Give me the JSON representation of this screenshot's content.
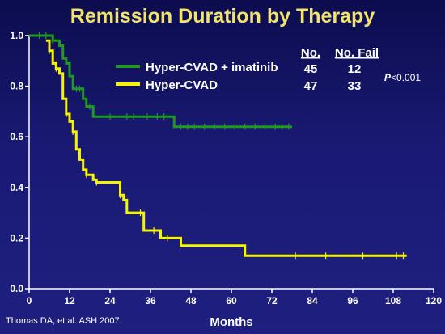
{
  "slide": {
    "title": "Remission Duration by Therapy",
    "citation": "Thomas DA, et al. ASH 2007.",
    "pvalue": {
      "prefix": "P",
      "rest": "<0.001"
    },
    "table": {
      "headers": [
        "No.",
        "No. Fail"
      ],
      "rows": [
        {
          "n": "45",
          "fail": "12"
        },
        {
          "n": "47",
          "fail": "33"
        }
      ]
    }
  },
  "chart_data": {
    "type": "line",
    "title": "Remission Duration by Therapy",
    "xlabel": "Months",
    "ylabel": "",
    "xlim": [
      0,
      120
    ],
    "ylim": [
      0,
      1.0
    ],
    "xticks": [
      "0",
      "12",
      "24",
      "36",
      "48",
      "60",
      "72",
      "84",
      "96",
      "108",
      "120"
    ],
    "yticks": [
      "0.0",
      "0.2",
      "0.4",
      "0.6",
      "0.8",
      "1.0"
    ],
    "grid": false,
    "legend_position": "top-center",
    "series": [
      {
        "name": "Hyper-CVAD + imatinib",
        "color": "#1f9a1f",
        "step_points": [
          [
            0,
            1.0
          ],
          [
            7,
            1.0
          ],
          [
            7,
            0.98
          ],
          [
            9,
            0.98
          ],
          [
            9,
            0.96
          ],
          [
            10,
            0.96
          ],
          [
            10,
            0.91
          ],
          [
            11,
            0.91
          ],
          [
            11,
            0.89
          ],
          [
            12,
            0.89
          ],
          [
            12,
            0.84
          ],
          [
            13,
            0.84
          ],
          [
            13,
            0.79
          ],
          [
            16,
            0.79
          ],
          [
            16,
            0.75
          ],
          [
            17,
            0.75
          ],
          [
            17,
            0.72
          ],
          [
            19,
            0.72
          ],
          [
            19,
            0.68
          ],
          [
            43,
            0.68
          ],
          [
            43,
            0.64
          ],
          [
            78,
            0.64
          ]
        ],
        "censor_x": [
          3,
          5,
          7,
          14,
          15,
          18,
          24,
          29,
          31,
          35,
          38,
          40,
          45,
          47,
          49,
          52,
          55,
          58,
          61,
          64,
          67,
          70,
          73,
          75,
          77
        ]
      },
      {
        "name": "Hyper-CVAD",
        "color": "#f5f500",
        "step_points": [
          [
            5,
            0.98
          ],
          [
            6,
            0.98
          ],
          [
            6,
            0.94
          ],
          [
            7,
            0.94
          ],
          [
            7,
            0.89
          ],
          [
            8,
            0.89
          ],
          [
            8,
            0.87
          ],
          [
            9,
            0.87
          ],
          [
            9,
            0.85
          ],
          [
            10,
            0.85
          ],
          [
            10,
            0.75
          ],
          [
            11,
            0.75
          ],
          [
            11,
            0.69
          ],
          [
            12,
            0.69
          ],
          [
            12,
            0.66
          ],
          [
            13,
            0.66
          ],
          [
            13,
            0.62
          ],
          [
            14,
            0.62
          ],
          [
            14,
            0.55
          ],
          [
            15,
            0.55
          ],
          [
            15,
            0.51
          ],
          [
            16,
            0.51
          ],
          [
            16,
            0.47
          ],
          [
            17,
            0.47
          ],
          [
            17,
            0.45
          ],
          [
            19,
            0.45
          ],
          [
            19,
            0.43
          ],
          [
            20,
            0.43
          ],
          [
            20,
            0.42
          ],
          [
            27,
            0.42
          ],
          [
            27,
            0.37
          ],
          [
            28,
            0.37
          ],
          [
            28,
            0.35
          ],
          [
            29,
            0.35
          ],
          [
            29,
            0.3
          ],
          [
            34,
            0.3
          ],
          [
            34,
            0.23
          ],
          [
            39,
            0.23
          ],
          [
            39,
            0.2
          ],
          [
            45,
            0.2
          ],
          [
            45,
            0.17
          ],
          [
            64,
            0.17
          ],
          [
            64,
            0.13
          ],
          [
            112,
            0.13
          ]
        ],
        "censor_x": [
          6,
          8,
          11,
          13,
          17,
          20,
          27,
          33,
          37,
          41,
          79,
          88,
          99,
          109,
          111
        ]
      }
    ]
  }
}
